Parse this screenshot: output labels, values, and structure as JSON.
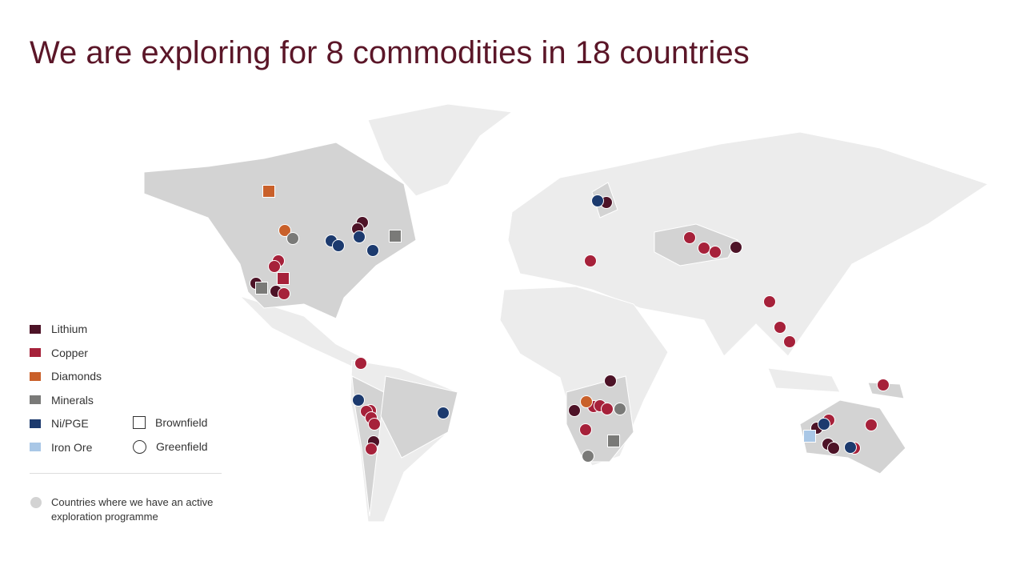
{
  "title": "We are exploring for 8 commodities in 18 countries",
  "legend": {
    "commodities": [
      {
        "label": "Lithium",
        "color": "#4d1327"
      },
      {
        "label": "Copper",
        "color": "#a6213a"
      },
      {
        "label": "Diamonds",
        "color": "#c9602a"
      },
      {
        "label": "Minerals",
        "color": "#7a7a78"
      },
      {
        "label": "Ni/PGE",
        "color": "#1c3a6e"
      },
      {
        "label": "Iron Ore",
        "color": "#a9c7e6"
      }
    ],
    "sites": [
      "Brownfield",
      "Greenfield"
    ],
    "note": "Countries where we have an active exploration programme"
  }
}
